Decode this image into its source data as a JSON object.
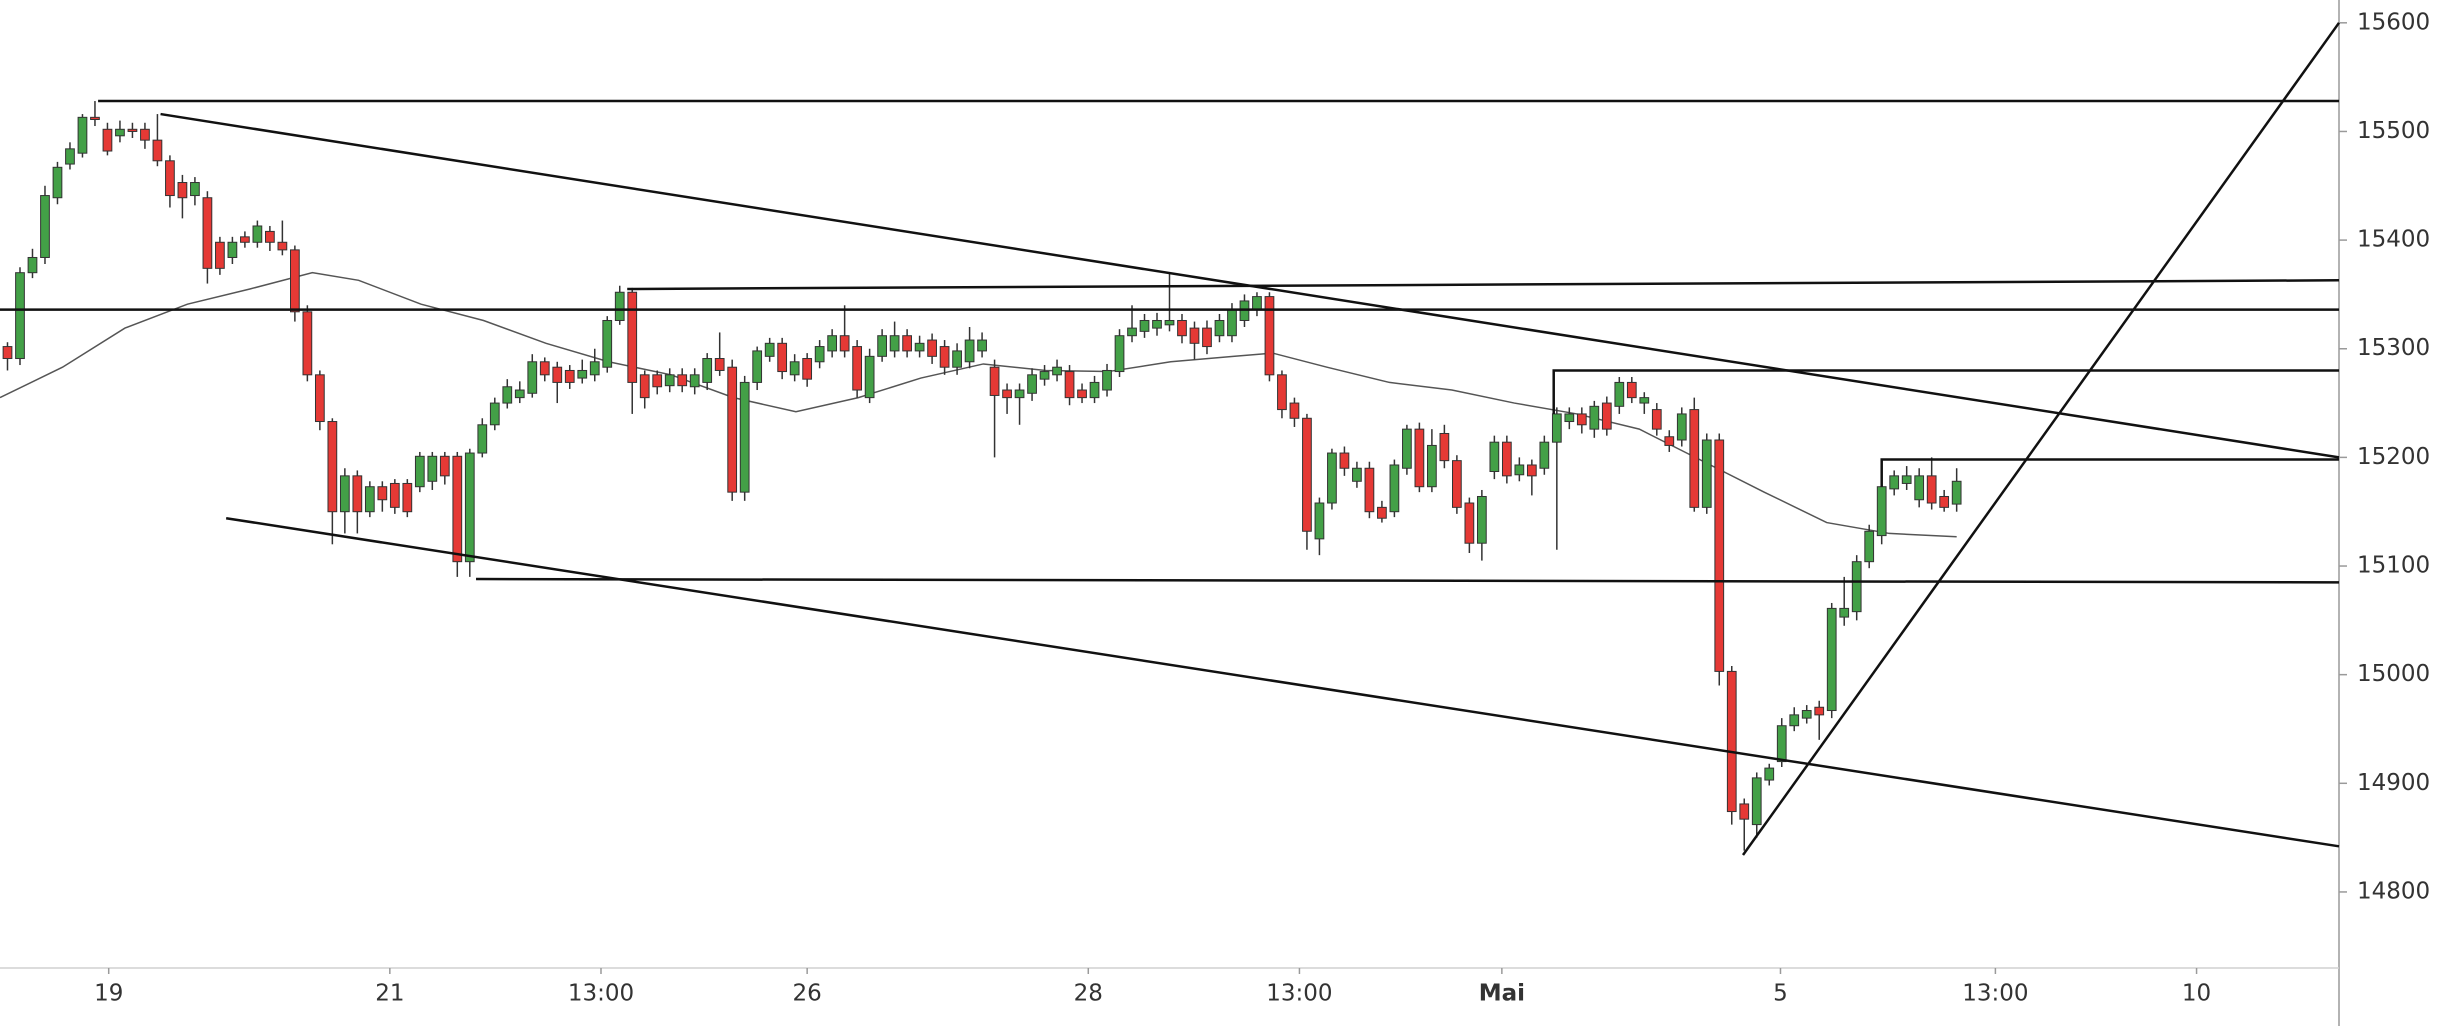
{
  "chart_data": {
    "type": "candlestick",
    "up_color": "#43a047",
    "down_color": "#e53935",
    "wick_color": "#333333",
    "open": [
      15302,
      15291,
      15370,
      15384,
      15439,
      15470,
      15480,
      15513,
      15502,
      15496,
      15502,
      15502,
      15492,
      15473,
      15453,
      15441,
      15439,
      15398,
      15384,
      15403,
      15398,
      15408,
      15398,
      15391,
      15334,
      15276,
      15233,
      15150,
      15183,
      15150,
      15173,
      15176,
      15176,
      15173,
      15178,
      15201,
      15201,
      15104,
      15204,
      15230,
      15250,
      15255,
      15259,
      15288,
      15283,
      15280,
      15273,
      15276,
      15283,
      15326,
      15352,
      15276,
      15276,
      15266,
      15276,
      15265,
      15269,
      15291,
      15283,
      15168,
      15269,
      15293,
      15305,
      15276,
      15291,
      15288,
      15298,
      15312,
      15302,
      15255,
      15293,
      15298,
      15312,
      15298,
      15308,
      15302,
      15283,
      15288,
      15298,
      15283,
      15262,
      15255,
      15259,
      15272,
      15276,
      15279,
      15262,
      15255,
      15262,
      15279,
      15312,
      15316,
      15319,
      15322,
      15326,
      15319,
      15319,
      15312,
      15312,
      15326,
      15336,
      15348,
      15276,
      15250,
      15236,
      15125,
      15158,
      15204,
      15178,
      15190,
      15154,
      15150,
      15190,
      15226,
      15173,
      15222,
      15197,
      15158,
      15121,
      15187,
      15214,
      15184,
      15193,
      15190,
      15214,
      15233,
      15240,
      15226,
      15250,
      15247,
      15269,
      15250,
      15244,
      15219,
      15216,
      15244,
      15154,
      15216,
      15003,
      14881,
      14862,
      14903,
      14920,
      14953,
      14960,
      14970,
      14967,
      15053,
      15058,
      15104,
      15128,
      15171,
      15176,
      15161,
      15183,
      15164,
      15157
    ],
    "high": [
      15306,
      15375,
      15392,
      15450,
      15472,
      15490,
      15516,
      15528,
      15508,
      15510,
      15508,
      15508,
      15516,
      15478,
      15460,
      15458,
      15445,
      15403,
      15403,
      15408,
      15418,
      15413,
      15418,
      15395,
      15340,
      15280,
      15236,
      15190,
      15188,
      15178,
      15178,
      15180,
      15180,
      15205,
      15205,
      15205,
      15205,
      15208,
      15236,
      15255,
      15272,
      15270,
      15295,
      15292,
      15288,
      15285,
      15290,
      15300,
      15330,
      15358,
      15356,
      15280,
      15280,
      15282,
      15282,
      15282,
      15296,
      15315,
      15290,
      15275,
      15302,
      15310,
      15310,
      15295,
      15296,
      15308,
      15318,
      15340,
      15308,
      15300,
      15318,
      15325,
      15318,
      15312,
      15314,
      15308,
      15305,
      15320,
      15315,
      15290,
      15268,
      15268,
      15282,
      15285,
      15290,
      15285,
      15268,
      15275,
      15286,
      15318,
      15340,
      15332,
      15333,
      15370,
      15332,
      15325,
      15326,
      15332,
      15342,
      15350,
      15352,
      15352,
      15280,
      15255,
      15240,
      15163,
      15208,
      15210,
      15196,
      15196,
      15160,
      15198,
      15230,
      15232,
      15226,
      15230,
      15202,
      15163,
      15170,
      15220,
      15220,
      15200,
      15198,
      15220,
      15246,
      15246,
      15246,
      15252,
      15256,
      15274,
      15274,
      15260,
      15250,
      15225,
      15246,
      15255,
      15222,
      15222,
      15008,
      14886,
      14910,
      14918,
      14960,
      14970,
      14972,
      14976,
      15066,
      15090,
      15110,
      15138,
      15178,
      15188,
      15192,
      15190,
      15200,
      15170,
      15190
    ],
    "low": [
      15280,
      15285,
      15365,
      15378,
      15433,
      15465,
      15476,
      15505,
      15478,
      15490,
      15494,
      15484,
      15468,
      15430,
      15420,
      15432,
      15360,
      15368,
      15378,
      15393,
      15393,
      15390,
      15386,
      15325,
      15270,
      15225,
      15120,
      15130,
      15130,
      15145,
      15150,
      15148,
      15145,
      15168,
      15170,
      15175,
      15090,
      15090,
      15200,
      15225,
      15245,
      15250,
      15255,
      15270,
      15250,
      15263,
      15268,
      15270,
      15278,
      15322,
      15240,
      15245,
      15258,
      15260,
      15260,
      15258,
      15262,
      15275,
      15160,
      15160,
      15262,
      15288,
      15272,
      15270,
      15265,
      15282,
      15292,
      15292,
      15255,
      15250,
      15288,
      15292,
      15292,
      15292,
      15286,
      15276,
      15276,
      15282,
      15292,
      15200,
      15240,
      15230,
      15252,
      15266,
      15270,
      15248,
      15250,
      15250,
      15256,
      15274,
      15306,
      15310,
      15312,
      15316,
      15305,
      15290,
      15295,
      15306,
      15306,
      15320,
      15330,
      15270,
      15236,
      15228,
      15115,
      15110,
      15152,
      15183,
      15172,
      15144,
      15140,
      15145,
      15184,
      15168,
      15168,
      15190,
      15148,
      15112,
      15105,
      15180,
      15176,
      15178,
      15165,
      15184,
      15115,
      15226,
      15222,
      15218,
      15220,
      15240,
      15250,
      15240,
      15220,
      15205,
      15210,
      15150,
      15148,
      14990,
      14862,
      14838,
      14850,
      14898,
      14915,
      14948,
      14955,
      14940,
      14960,
      15045,
      15050,
      15098,
      15120,
      15165,
      15170,
      15154,
      15152,
      15150,
      15150
    ],
    "close": [
      15291,
      15370,
      15384,
      15441,
      15467,
      15484,
      15513,
      15511,
      15482,
      15502,
      15500,
      15492,
      15473,
      15441,
      15439,
      15453,
      15374,
      15374,
      15398,
      15398,
      15413,
      15398,
      15391,
      15334,
      15276,
      15233,
      15150,
      15183,
      15150,
      15173,
      15161,
      15154,
      15150,
      15201,
      15201,
      15183,
      15104,
      15204,
      15230,
      15250,
      15265,
      15262,
      15288,
      15276,
      15269,
      15269,
      15280,
      15288,
      15326,
      15352,
      15269,
      15255,
      15265,
      15276,
      15266,
      15276,
      15291,
      15280,
      15168,
      15269,
      15298,
      15305,
      15279,
      15288,
      15272,
      15302,
      15312,
      15298,
      15262,
      15293,
      15312,
      15312,
      15298,
      15305,
      15293,
      15283,
      15298,
      15308,
      15308,
      15257,
      15255,
      15262,
      15276,
      15279,
      15283,
      15255,
      15255,
      15269,
      15280,
      15312,
      15319,
      15326,
      15326,
      15326,
      15312,
      15305,
      15302,
      15326,
      15336,
      15344,
      15348,
      15276,
      15244,
      15236,
      15132,
      15158,
      15204,
      15190,
      15190,
      15150,
      15144,
      15193,
      15226,
      15173,
      15211,
      15197,
      15154,
      15121,
      15164,
      15214,
      15183,
      15193,
      15183,
      15214,
      15240,
      15240,
      15230,
      15247,
      15226,
      15269,
      15255,
      15255,
      15226,
      15211,
      15240,
      15154,
      15216,
      15003,
      14874,
      14867,
      14905,
      14914,
      14953,
      14963,
      14967,
      14963,
      15061,
      15061,
      15104,
      15132,
      15173,
      15183,
      15183,
      15183,
      15158,
      15154,
      15178
    ],
    "moving_average": {
      "color": "#555555",
      "x": [
        -0.6,
        4.4,
        9.4,
        14.4,
        19.4,
        24.4,
        28.1,
        33.1,
        38.1,
        43.1,
        48.1,
        53.1,
        58.1,
        63.1,
        68.1,
        73.1,
        78.1,
        83.1,
        88.1,
        93.1,
        98.1,
        101.25,
        105.6,
        110.6,
        115.6,
        120.6,
        125.6,
        130.6,
        135.6,
        140.6,
        145.6,
        150.6,
        156
      ],
      "values": [
        15255,
        15283,
        15319,
        15341,
        15355,
        15370,
        15363,
        15341,
        15326,
        15305,
        15288,
        15276,
        15255,
        15242,
        15255,
        15273,
        15286,
        15280,
        15279,
        15288,
        15293,
        15296,
        15283,
        15269,
        15262,
        15250,
        15240,
        15226,
        15197,
        15168,
        15140,
        15130,
        15127
      ]
    },
    "drawings": [
      {
        "x": [
          7.25,
          186.6
        ],
        "y": [
          15528,
          15528
        ]
      },
      {
        "x": [
          12.25,
          186.6
        ],
        "y": [
          15516,
          15200
        ]
      },
      {
        "x": [
          -0.6,
          186.6
        ],
        "y": [
          15336,
          15336
        ]
      },
      {
        "x": [
          49.6,
          186.6
        ],
        "y": [
          15355,
          15363
        ]
      },
      {
        "x": [
          123.75,
          123.75,
          186.6
        ],
        "y": [
          15240,
          15280,
          15280
        ]
      },
      {
        "x": [
          150,
          150,
          186.6
        ],
        "y": [
          15173,
          15198,
          15198
        ]
      },
      {
        "x": [
          37.5,
          186.6
        ],
        "y": [
          15088,
          15085
        ]
      },
      {
        "x": [
          17.5,
          186.6
        ],
        "y": [
          15144,
          14842
        ]
      },
      {
        "x": [
          138.9,
          186.6
        ],
        "y": [
          14834,
          15600
        ]
      }
    ],
    "xlim": [
      -0.6,
      186.6
    ],
    "xticks": [
      {
        "value": 8.1,
        "label": "19"
      },
      {
        "value": 30.6,
        "label": "21"
      },
      {
        "value": 47.5,
        "label": "13:00"
      },
      {
        "value": 64,
        "label": "26"
      },
      {
        "value": 86.5,
        "label": "28"
      },
      {
        "value": 103.4,
        "label": "13:00"
      },
      {
        "value": 119.6,
        "label": "Mai",
        "bold": true
      },
      {
        "value": 141.9,
        "label": "5"
      },
      {
        "value": 159.1,
        "label": "13:00"
      },
      {
        "value": 175.2,
        "label": "10"
      }
    ],
    "ylim": [
      14730,
      15621
    ],
    "yticks": [
      14800,
      14900,
      15000,
      15100,
      15200,
      15300,
      15400,
      15500,
      15600
    ]
  }
}
